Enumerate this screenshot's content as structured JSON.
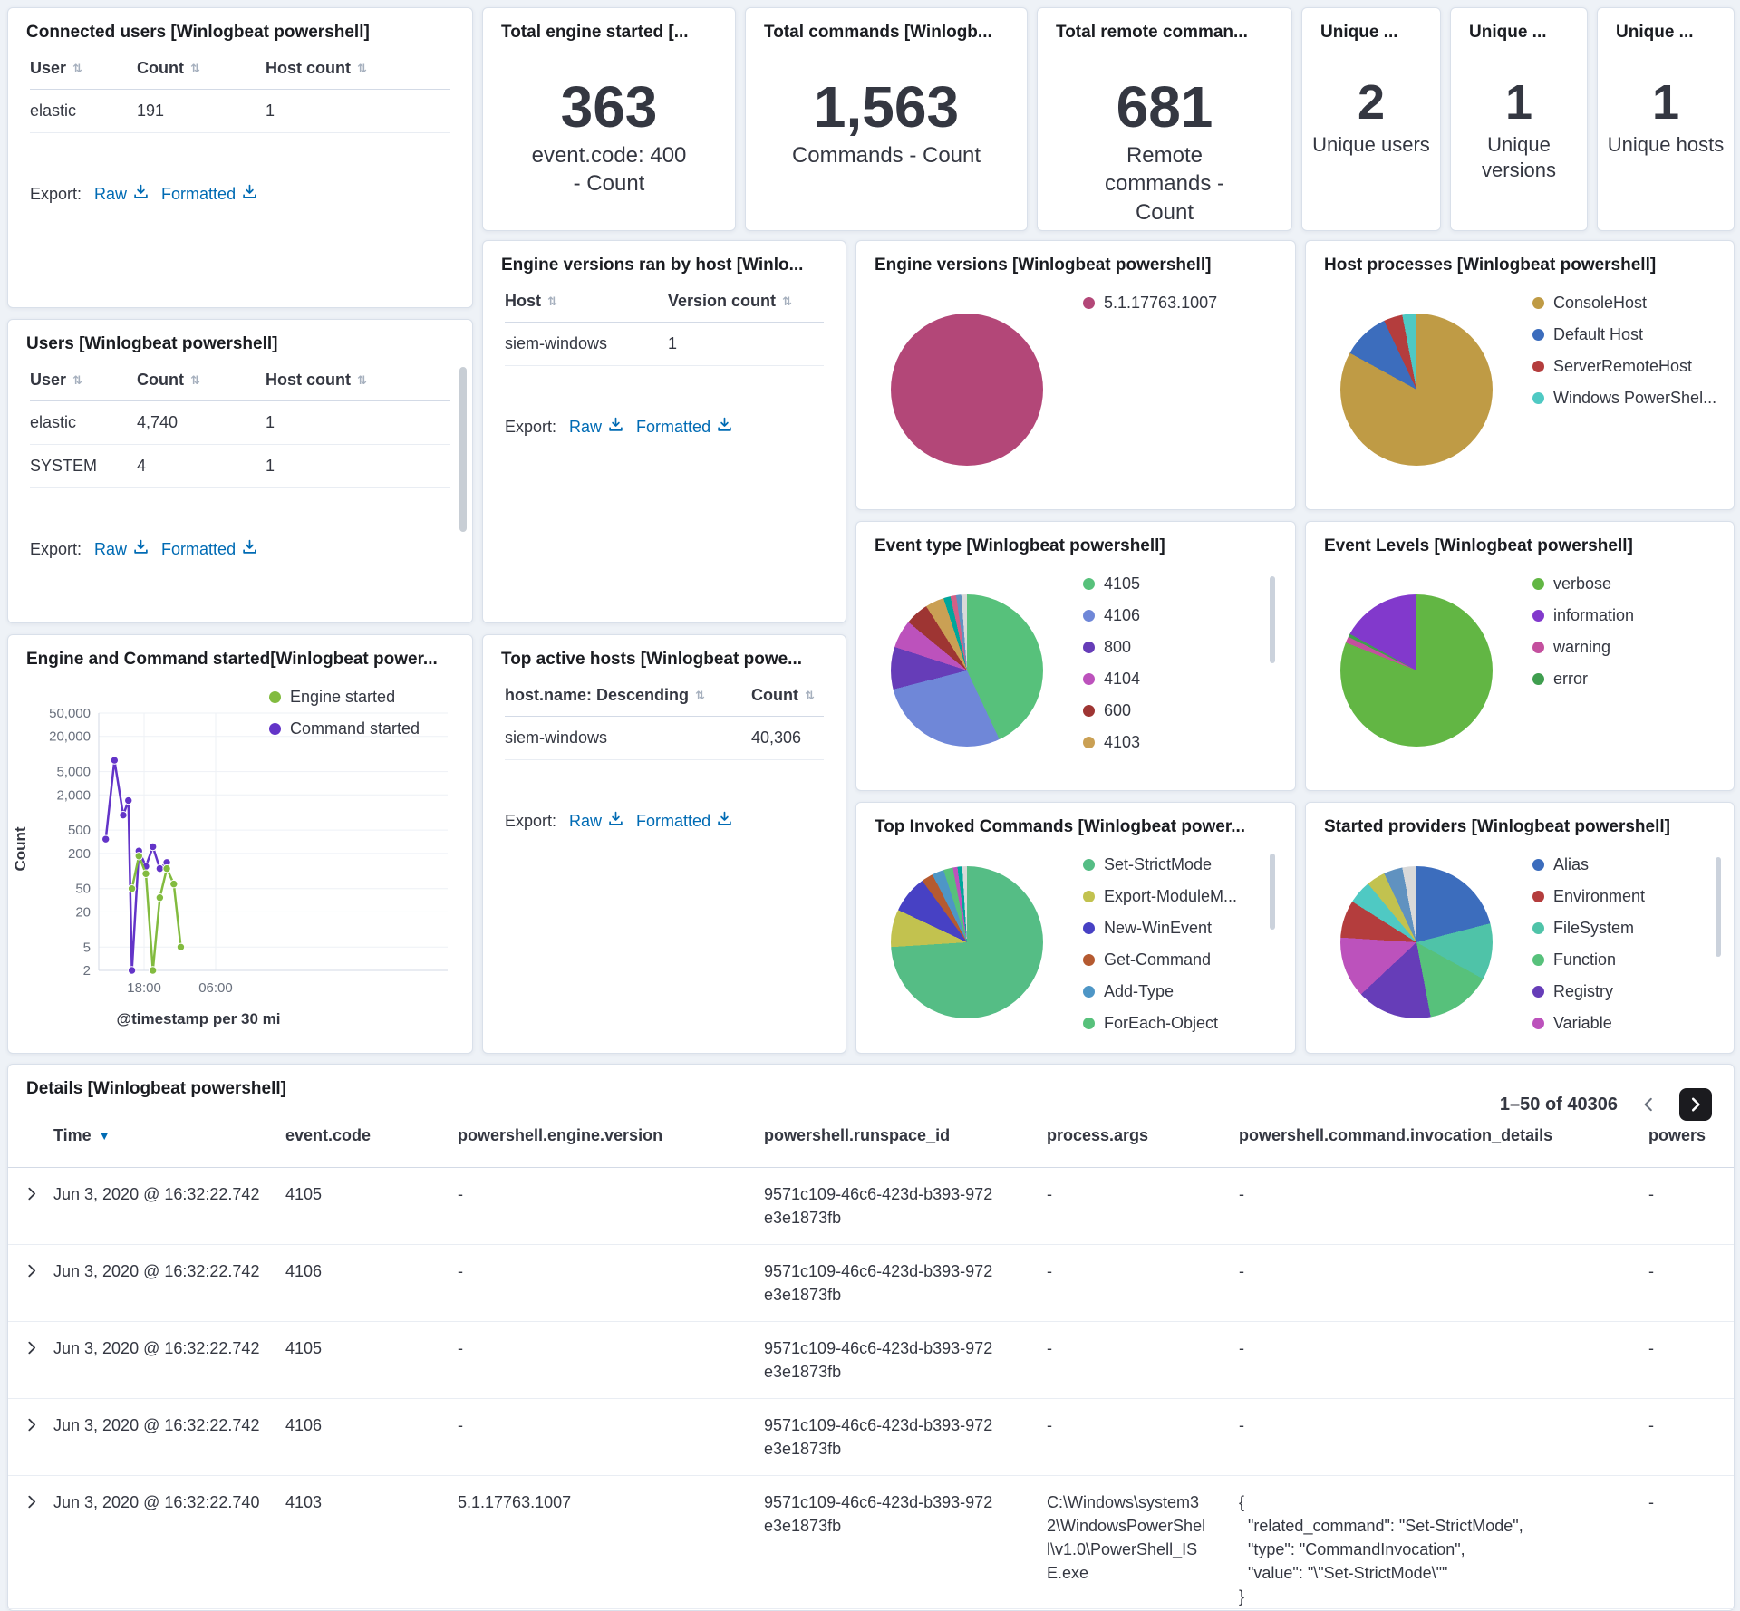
{
  "colors": {
    "link": "#006bb4",
    "text": "#343741",
    "title": "#1a1c21",
    "border": "#d3dae6"
  },
  "panels": {
    "connected_users": {
      "title": "Connected users [Winlogbeat powershell]",
      "table": {
        "columns": [
          "User",
          "Count",
          "Host count"
        ],
        "rows": [
          [
            "elastic",
            "191",
            "1"
          ]
        ]
      },
      "export_label": "Export:",
      "raw": "Raw",
      "formatted": "Formatted"
    },
    "total_engine": {
      "title": "Total engine started [...",
      "value": "363",
      "label": "event.code: 400\n- Count"
    },
    "total_commands": {
      "title": "Total commands [Winlogb...",
      "value": "1,563",
      "label": "Commands - Count"
    },
    "total_remote": {
      "title": "Total remote comman...",
      "value": "681",
      "label": "Remote\ncommands -\nCount"
    },
    "unique_users": {
      "title": "Unique ...",
      "value": "2",
      "label": "Unique users"
    },
    "unique_versions": {
      "title": "Unique ...",
      "value": "1",
      "label": "Unique versions"
    },
    "unique_hosts": {
      "title": "Unique ...",
      "value": "1",
      "label": "Unique hosts"
    },
    "users": {
      "title": "Users [Winlogbeat powershell]",
      "table": {
        "columns": [
          "User",
          "Count",
          "Host count"
        ],
        "rows": [
          [
            "elastic",
            "4,740",
            "1"
          ],
          [
            "SYSTEM",
            "4",
            "1"
          ]
        ]
      },
      "export_label": "Export:",
      "raw": "Raw",
      "formatted": "Formatted"
    },
    "engine_by_host": {
      "title": "Engine versions ran by host [Winlo...",
      "table": {
        "columns": [
          "Host",
          "Version count"
        ],
        "rows": [
          [
            "siem-windows",
            "1"
          ]
        ]
      },
      "export_label": "Export:",
      "raw": "Raw",
      "formatted": "Formatted"
    },
    "top_hosts": {
      "title": "Top active hosts [Winlogbeat powe...",
      "table": {
        "columns": [
          "host.name: Descending",
          "Count"
        ],
        "rows": [
          [
            "siem-windows",
            "40,306"
          ]
        ]
      },
      "export_label": "Export:",
      "raw": "Raw",
      "formatted": "Formatted"
    },
    "engine_versions": {
      "title": "Engine versions [Winlogbeat powershell]",
      "chart_data": {
        "type": "pie",
        "legend": [
          {
            "label": "5.1.17763.1007",
            "color": "#b34778"
          }
        ],
        "slices": [
          {
            "color": "#b34778",
            "value": 100
          }
        ]
      }
    },
    "host_processes": {
      "title": "Host processes [Winlogbeat powershell]",
      "chart_data": {
        "type": "pie",
        "legend": [
          {
            "label": "ConsoleHost",
            "color": "#bf9b45"
          },
          {
            "label": "Default Host",
            "color": "#3c6dbd"
          },
          {
            "label": "ServerRemoteHost",
            "color": "#b43d3d"
          },
          {
            "label": "Windows PowerShel...",
            "color": "#4fc9c3"
          }
        ],
        "slices": [
          {
            "color": "#bf9b45",
            "value": 83
          },
          {
            "color": "#3c6dbd",
            "value": 10
          },
          {
            "color": "#b43d3d",
            "value": 4
          },
          {
            "color": "#4fc9c3",
            "value": 3
          }
        ]
      }
    },
    "event_type": {
      "title": "Event type [Winlogbeat powershell]",
      "chart_data": {
        "type": "pie",
        "legend": [
          {
            "label": "4105",
            "color": "#57c17b"
          },
          {
            "label": "4106",
            "color": "#6f87d8"
          },
          {
            "label": "800",
            "color": "#663db8"
          },
          {
            "label": "4104",
            "color": "#bc52bc"
          },
          {
            "label": "600",
            "color": "#9e3533"
          },
          {
            "label": "4103",
            "color": "#caa054"
          }
        ],
        "slices": [
          {
            "color": "#57c17b",
            "value": 43
          },
          {
            "color": "#6f87d8",
            "value": 28
          },
          {
            "color": "#663db8",
            "value": 9
          },
          {
            "color": "#bc52bc",
            "value": 6
          },
          {
            "color": "#9e3533",
            "value": 5
          },
          {
            "color": "#caa054",
            "value": 4
          },
          {
            "color": "#00a69b",
            "value": 1.5
          },
          {
            "color": "#d36086",
            "value": 1.2
          },
          {
            "color": "#6092c0",
            "value": 1.1
          },
          {
            "color": "#d9d9d9",
            "value": 1.2
          }
        ]
      }
    },
    "event_levels": {
      "title": "Event Levels [Winlogbeat powershell]",
      "chart_data": {
        "type": "pie",
        "legend": [
          {
            "label": "verbose",
            "color": "#62b644"
          },
          {
            "label": "information",
            "color": "#8239cc"
          },
          {
            "label": "warning",
            "color": "#c4509e"
          },
          {
            "label": "error",
            "color": "#3f9e4f"
          }
        ],
        "slices": [
          {
            "color": "#62b644",
            "value": 81
          },
          {
            "color": "#c4509e",
            "value": 1.3
          },
          {
            "color": "#3f9e4f",
            "value": 0.7
          },
          {
            "color": "#8239cc",
            "value": 17
          }
        ]
      }
    },
    "top_invoked": {
      "title": "Top Invoked Commands [Winlogbeat power...",
      "chart_data": {
        "type": "pie",
        "legend": [
          {
            "label": "Set-StrictMode",
            "color": "#55bd85"
          },
          {
            "label": "Export-ModuleM...",
            "color": "#c2c24f"
          },
          {
            "label": "New-WinEvent",
            "color": "#4741c4"
          },
          {
            "label": "Get-Command",
            "color": "#b55a30"
          },
          {
            "label": "Add-Type",
            "color": "#4e96c6"
          },
          {
            "label": "ForEach-Object",
            "color": "#57c17b"
          }
        ],
        "slices": [
          {
            "color": "#55bd85",
            "value": 74
          },
          {
            "color": "#c2c24f",
            "value": 8
          },
          {
            "color": "#4741c4",
            "value": 8
          },
          {
            "color": "#b55a30",
            "value": 2.5
          },
          {
            "color": "#4e96c6",
            "value": 2.5
          },
          {
            "color": "#57c17b",
            "value": 2
          },
          {
            "color": "#bc52bc",
            "value": 1
          },
          {
            "color": "#00a69b",
            "value": 1
          },
          {
            "color": "#d9d9d9",
            "value": 1
          }
        ]
      }
    },
    "started_providers": {
      "title": "Started providers [Winlogbeat powershell]",
      "chart_data": {
        "type": "pie",
        "legend": [
          {
            "label": "Alias",
            "color": "#3c6dbd"
          },
          {
            "label": "Environment",
            "color": "#b43d3d"
          },
          {
            "label": "FileSystem",
            "color": "#4fc3a8"
          },
          {
            "label": "Function",
            "color": "#57c17b"
          },
          {
            "label": "Registry",
            "color": "#663db8"
          },
          {
            "label": "Variable",
            "color": "#bc52bc"
          }
        ],
        "slices": [
          {
            "color": "#3c6dbd",
            "value": 21
          },
          {
            "color": "#4fc3a8",
            "value": 12
          },
          {
            "color": "#57c17b",
            "value": 14
          },
          {
            "color": "#663db8",
            "value": 16
          },
          {
            "color": "#bc52bc",
            "value": 13
          },
          {
            "color": "#b43d3d",
            "value": 8
          },
          {
            "color": "#4fc9c3",
            "value": 5
          },
          {
            "color": "#c2c24f",
            "value": 4
          },
          {
            "color": "#6092c0",
            "value": 4
          },
          {
            "color": "#d9d9d9",
            "value": 3
          }
        ]
      }
    },
    "engine_command": {
      "title": "Engine and Command started[Winlogbeat power...",
      "chart_data": {
        "type": "line",
        "y_scale": "log",
        "y_label": "Count",
        "x_label": "@timestamp per 30 mi",
        "y_ticks": [
          {
            "label": "50,000",
            "value": 50000
          },
          {
            "label": "20,000",
            "value": 20000
          },
          {
            "label": "5,000",
            "value": 5000
          },
          {
            "label": "2,000",
            "value": 2000
          },
          {
            "label": "500",
            "value": 500
          },
          {
            "label": "200",
            "value": 200
          },
          {
            "label": "50",
            "value": 50
          },
          {
            "label": "20",
            "value": 20
          },
          {
            "label": "5",
            "value": 5
          },
          {
            "label": "2",
            "value": 2
          }
        ],
        "x_ticks": [
          {
            "label": "18:00",
            "pos": 0.13
          },
          {
            "label": "06:00",
            "pos": 0.335
          }
        ],
        "legend": [
          {
            "label": "Engine started",
            "color": "#82bb3f"
          },
          {
            "label": "Command started",
            "color": "#6334c8"
          }
        ],
        "series": [
          {
            "name": "Command started",
            "color": "#6334c8",
            "points": [
              [
                0.02,
                350
              ],
              [
                0.045,
                7800
              ],
              [
                0.07,
                900
              ],
              [
                0.085,
                1600
              ],
              [
                0.095,
                2
              ],
              [
                0.115,
                220
              ],
              [
                0.135,
                120
              ],
              [
                0.155,
                260
              ],
              [
                0.175,
                110
              ],
              [
                0.195,
                140
              ]
            ]
          },
          {
            "name": "Engine started",
            "color": "#82bb3f",
            "points": [
              [
                0.095,
                50
              ],
              [
                0.115,
                180
              ],
              [
                0.135,
                90
              ],
              [
                0.155,
                2
              ],
              [
                0.175,
                35
              ],
              [
                0.195,
                110
              ],
              [
                0.215,
                60
              ],
              [
                0.235,
                5
              ]
            ]
          }
        ]
      }
    },
    "details": {
      "title": "Details [Winlogbeat powershell]",
      "pagination": "1–50 of 40306",
      "columns": [
        "Time",
        "event.code",
        "powershell.engine.version",
        "powershell.runspace_id",
        "process.args",
        "powershell.command.invocation_details",
        "powers"
      ],
      "rows": [
        {
          "time": "Jun 3, 2020 @ 16:32:22.742",
          "code": "4105",
          "version": "-",
          "runspace": "9571c109-46c6-423d-b393-972e3e1873fb",
          "args": "-",
          "invocation": "-",
          "extra": "-"
        },
        {
          "time": "Jun 3, 2020 @ 16:32:22.742",
          "code": "4106",
          "version": "-",
          "runspace": "9571c109-46c6-423d-b393-972e3e1873fb",
          "args": "-",
          "invocation": "-",
          "extra": "-"
        },
        {
          "time": "Jun 3, 2020 @ 16:32:22.742",
          "code": "4105",
          "version": "-",
          "runspace": "9571c109-46c6-423d-b393-972e3e1873fb",
          "args": "-",
          "invocation": "-",
          "extra": "-"
        },
        {
          "time": "Jun 3, 2020 @ 16:32:22.742",
          "code": "4106",
          "version": "-",
          "runspace": "9571c109-46c6-423d-b393-972e3e1873fb",
          "args": "-",
          "invocation": "-",
          "extra": "-"
        },
        {
          "time": "Jun 3, 2020 @ 16:32:22.740",
          "code": "4103",
          "version": "5.1.17763.1007",
          "runspace": "9571c109-46c6-423d-b393-972e3e1873fb",
          "args": "C:\\Windows\\system32\\WindowsPowerShell\\v1.0\\PowerShell_ISE.exe",
          "invocation": "{\n  \"related_command\": \"Set-StrictMode\",\n  \"type\": \"CommandInvocation\",\n  \"value\": \"\\\"Set-StrictMode\\\"\"\n}",
          "extra": "-"
        }
      ]
    }
  }
}
